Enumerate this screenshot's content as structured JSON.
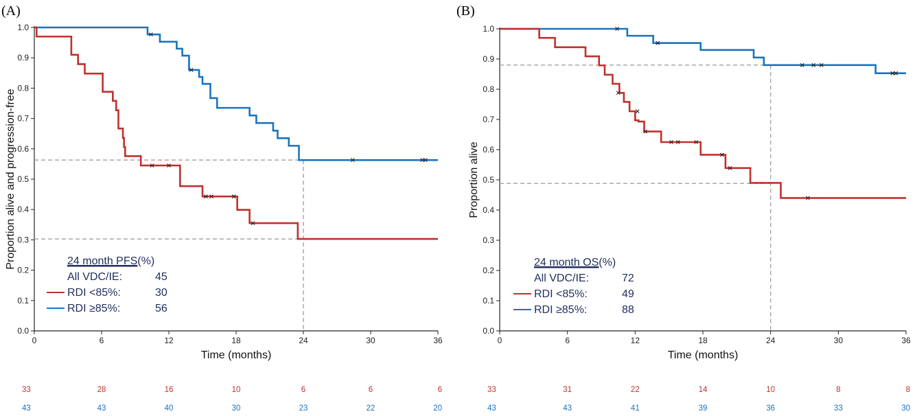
{
  "colors": {
    "low_rdi": "#c0302b",
    "high_rdi": "#1a73c0",
    "reference": "#a8a8a8",
    "legend_text": "#1f2d5c",
    "axis": "#222222"
  },
  "chart_data": [
    {
      "type": "line",
      "panel_label": "(A)",
      "xlabel": "Time (months)",
      "ylabel": "Proportion alive and progression-free",
      "xlim": [
        0,
        36
      ],
      "ylim": [
        0,
        1
      ],
      "x_ticks": [
        "0",
        "6",
        "12",
        "18",
        "24",
        "30",
        "36"
      ],
      "y_ticks": [
        "0.0",
        "0.1",
        "0.2",
        "0.3",
        "0.4",
        "0.5",
        "0.6",
        "0.7",
        "0.8",
        "0.9",
        "1.0"
      ],
      "grid": false,
      "step": true,
      "series": [
        {
          "name": "RDI ≥85%",
          "color": "#1a73c0",
          "x": [
            0,
            10.1,
            11.2,
            12.7,
            13.2,
            13.8,
            14.7,
            15.0,
            15.7,
            16.3,
            19.2,
            19.8,
            21.3,
            21.7,
            22.7,
            23.6,
            36
          ],
          "y": [
            1.0,
            0.977,
            0.953,
            0.93,
            0.907,
            0.86,
            0.837,
            0.814,
            0.767,
            0.735,
            0.71,
            0.685,
            0.66,
            0.635,
            0.61,
            0.563,
            0.563
          ],
          "censor_x": [
            10.4,
            14.0,
            28.4,
            34.6,
            34.9
          ],
          "censor_y": [
            0.977,
            0.86,
            0.563,
            0.563,
            0.563
          ]
        },
        {
          "name": "RDI <85%",
          "color": "#c0302b",
          "x": [
            0,
            0.2,
            3.3,
            3.9,
            4.5,
            6.1,
            7.0,
            7.3,
            7.5,
            7.9,
            8.0,
            8.1,
            9.5,
            13.0,
            15.0,
            18.1,
            19.2,
            23.5,
            36
          ],
          "y": [
            1.0,
            0.97,
            0.91,
            0.879,
            0.848,
            0.788,
            0.758,
            0.727,
            0.667,
            0.636,
            0.606,
            0.576,
            0.545,
            0.477,
            0.443,
            0.399,
            0.355,
            0.303,
            0.303
          ],
          "censor_x": [
            10.5,
            12.0,
            15.3,
            15.8,
            17.8,
            19.5
          ],
          "censor_y": [
            0.545,
            0.545,
            0.443,
            0.443,
            0.443,
            0.355
          ]
        }
      ],
      "reference_lines": {
        "x": 24,
        "y": [
          0.563,
          0.303
        ]
      },
      "legend": {
        "position": "bottom-left",
        "title": "24 month PFS",
        "title_suffix": " (%)",
        "rows": [
          {
            "label": "All VDC/IE:",
            "value": "45",
            "line": false
          },
          {
            "label": "RDI <85%:",
            "value": "30",
            "line": true,
            "color": "#c0302b"
          },
          {
            "label": "RDI ≥85%:",
            "value": "56",
            "line": true,
            "color": "#1a73c0"
          }
        ]
      },
      "at_risk": {
        "low_rdi": [
          "33",
          "28",
          "16",
          "10",
          "6",
          "6",
          "6"
        ],
        "high_rdi": [
          "43",
          "43",
          "40",
          "30",
          "23",
          "22",
          "20"
        ]
      }
    },
    {
      "type": "line",
      "panel_label": "(B)",
      "xlabel": "Time (months)",
      "ylabel": "Proportion alive",
      "xlim": [
        0,
        36
      ],
      "ylim": [
        0,
        1
      ],
      "x_ticks": [
        "0",
        "6",
        "12",
        "18",
        "24",
        "30",
        "36"
      ],
      "y_ticks": [
        "0.0",
        "0.1",
        "0.2",
        "0.3",
        "0.4",
        "0.5",
        "0.6",
        "0.7",
        "0.8",
        "0.9",
        "1.0"
      ],
      "grid": false,
      "step": true,
      "series": [
        {
          "name": "RDI ≥85%",
          "color": "#1a73c0",
          "x": [
            0,
            11.3,
            13.6,
            17.8,
            22.5,
            23.4,
            33.3,
            36
          ],
          "y": [
            1.0,
            0.977,
            0.953,
            0.93,
            0.905,
            0.88,
            0.853,
            0.853
          ],
          "censor_x": [
            10.4,
            14.0,
            26.8,
            27.8,
            28.5,
            34.8,
            35.1
          ],
          "censor_y": [
            1.0,
            0.953,
            0.88,
            0.88,
            0.88,
            0.853,
            0.853
          ],
          "extra_steps_x": [],
          "extra_steps_y": []
        },
        {
          "name": "RDI <85%",
          "color": "#c0302b",
          "x": [
            0,
            3.5,
            4.9,
            7.6,
            8.8,
            9.3,
            10.0,
            10.6,
            11.0,
            11.5,
            12.0,
            12.3,
            12.8,
            14.3,
            17.8,
            20.0,
            22.2,
            24.9,
            36
          ],
          "y": [
            1.0,
            0.97,
            0.939,
            0.909,
            0.879,
            0.848,
            0.818,
            0.788,
            0.758,
            0.727,
            0.697,
            0.693,
            0.66,
            0.625,
            0.583,
            0.539,
            0.49,
            0.44,
            0.44
          ],
          "censor_x": [
            10.5,
            12.2,
            12.9,
            15.2,
            15.8,
            17.4,
            19.7,
            20.4,
            27.3
          ],
          "censor_y": [
            0.788,
            0.727,
            0.66,
            0.625,
            0.625,
            0.625,
            0.583,
            0.539,
            0.44
          ]
        }
      ],
      "reference_lines": {
        "x": 24,
        "y": [
          0.88,
          0.488
        ]
      },
      "legend": {
        "position": "bottom-left",
        "title": "24 month OS",
        "title_suffix": " (%)",
        "rows": [
          {
            "label": "All VDC/IE:",
            "value": "72",
            "line": false
          },
          {
            "label": "RDI <85%:",
            "value": "49",
            "line": true,
            "color": "#c0302b"
          },
          {
            "label": "RDI ≥85%:",
            "value": "88",
            "line": true,
            "color": "#1a73c0"
          }
        ]
      },
      "at_risk": {
        "low_rdi": [
          "33",
          "31",
          "22",
          "14",
          "10",
          "8",
          "8"
        ],
        "high_rdi": [
          "43",
          "43",
          "41",
          "39",
          "36",
          "33",
          "30"
        ]
      }
    }
  ]
}
